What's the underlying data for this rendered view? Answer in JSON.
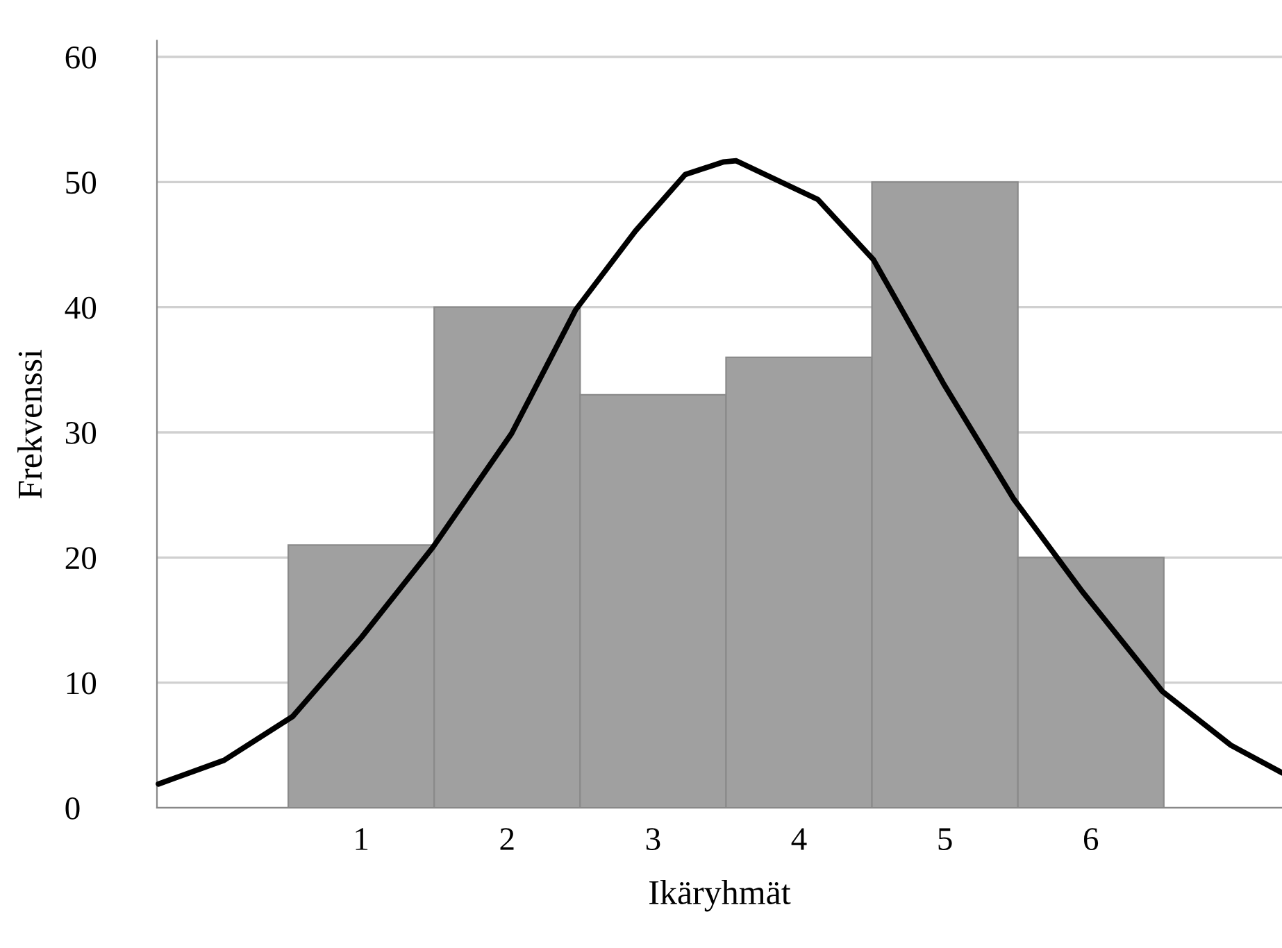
{
  "chart_data": {
    "type": "histogram",
    "xlabel": "Ikäryhmät",
    "ylabel": "Frekvenssi",
    "bins": [
      0.5,
      1.5,
      2.5,
      3.5,
      4.5,
      5.5,
      6.5
    ],
    "values": [
      21,
      40,
      33,
      36,
      50,
      20
    ],
    "color": "#a0a0a0",
    "series": [
      {
        "type": "line",
        "color": "#000000",
        "x": [
          -0.39,
          0.06,
          0.53,
          1.0,
          1.49,
          2.03,
          2.47,
          2.88,
          3.22,
          3.48,
          3.57,
          4.13,
          4.51,
          4.99,
          5.47,
          5.94,
          6.49,
          6.96,
          7.31
        ],
        "values": [
          1.9,
          3.8,
          7.3,
          13.6,
          20.8,
          29.9,
          39.8,
          46.1,
          50.6,
          51.6,
          51.7,
          48.6,
          43.8,
          33.9,
          24.7,
          17.3,
          9.3,
          5.0,
          2.8
        ]
      }
    ],
    "xlim": [
      -0.4,
      7.31
    ],
    "ylim": [
      0,
      61.3
    ],
    "xticks": [
      1,
      2,
      3,
      4,
      5,
      6
    ],
    "yticks": [
      0,
      10,
      20,
      30,
      40,
      50,
      60
    ],
    "grid": "y",
    "line_style": "solid",
    "marker": "none"
  }
}
